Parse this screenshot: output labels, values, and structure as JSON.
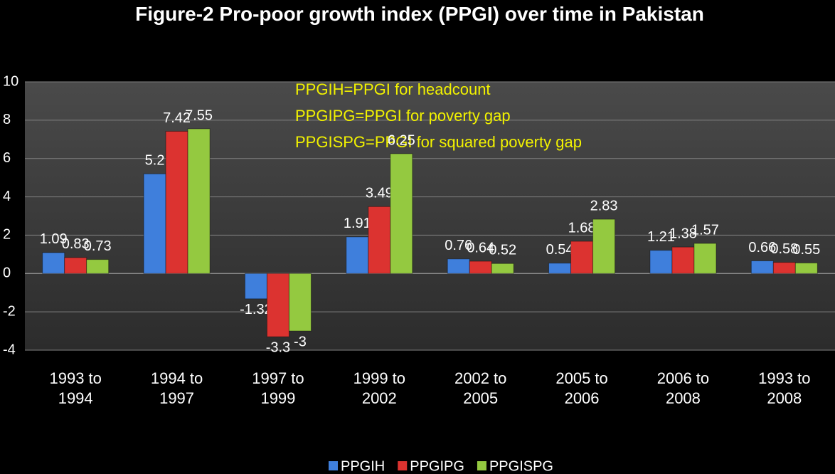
{
  "chart_data": {
    "type": "bar",
    "title": "Figure-2  Pro-poor growth index (PPGI) over time in Pakistan",
    "annotations": [
      "PPGIH=PPGI for headcount",
      "PPGIPG=PPGI for poverty gap",
      "PPGISPG=PPGI for squared poverty gap"
    ],
    "categories": [
      "1993 to 1994",
      "1994 to 1997",
      "1997 to 1999",
      "1999 to 2002",
      "2002 to 2005",
      "2005 to 2006",
      "2006 to 2008",
      "1993 to 2008"
    ],
    "series": [
      {
        "name": "PPGIH",
        "color": "#3f7fdc",
        "values": [
          1.09,
          5.2,
          -1.32,
          1.91,
          0.76,
          0.54,
          1.21,
          0.66
        ]
      },
      {
        "name": "PPGIPG",
        "color": "#dc3330",
        "values": [
          0.83,
          7.42,
          -3.3,
          3.49,
          0.64,
          1.68,
          1.38,
          0.58
        ]
      },
      {
        "name": "PPGISPG",
        "color": "#94c940",
        "values": [
          0.73,
          7.55,
          -3,
          6.25,
          0.52,
          2.83,
          1.57,
          0.55
        ]
      }
    ],
    "ylim": [
      -4,
      10
    ],
    "yticks": [
      -4,
      -2,
      0,
      2,
      4,
      6,
      8,
      10
    ],
    "grid": true,
    "legend": "bottom"
  }
}
